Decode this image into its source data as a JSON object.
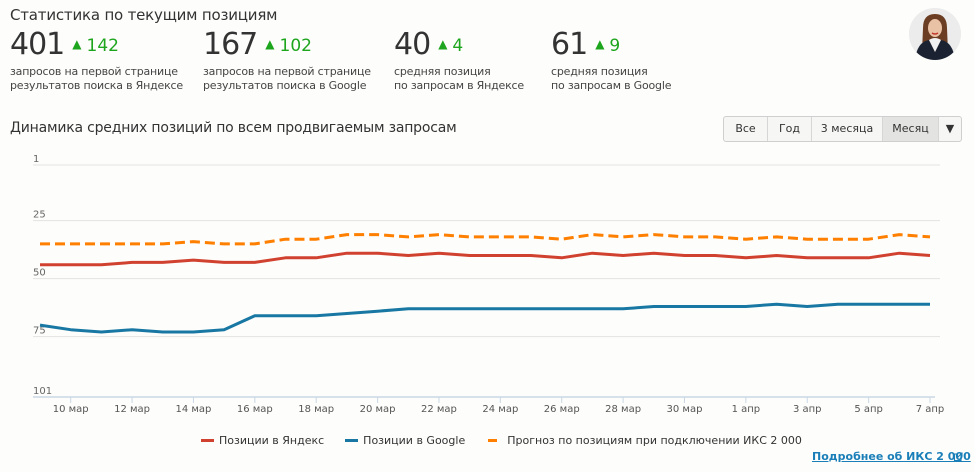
{
  "header": {
    "title": "Статистика по текущим позициям"
  },
  "stats": [
    {
      "value": "401",
      "arrow": "▲",
      "delta": "142",
      "desc": "запросов на первой странице\nрезультатов поиска в Яндексе"
    },
    {
      "value": "167",
      "arrow": "▲",
      "delta": "102",
      "desc": "запросов на первой странице\nрезультатов поиска в Google"
    },
    {
      "value": "40",
      "arrow": "▲",
      "delta": "4",
      "desc": "средняя позиция\nпо запросам в Яндексе"
    },
    {
      "value": "61",
      "arrow": "▲",
      "delta": "9",
      "desc": "средняя позиция\nпо запросам в Google"
    }
  ],
  "avatar": {
    "icon": "user-avatar-photo"
  },
  "range_buttons": [
    {
      "label": "Все",
      "active": false
    },
    {
      "label": "Год",
      "active": false
    },
    {
      "label": "3 месяца",
      "active": false
    },
    {
      "label": "Месяц",
      "active": true
    },
    {
      "label": "▼",
      "active": false
    }
  ],
  "more_link": {
    "label": "Подробнее об ИКС 2 000",
    "icon": "external-link-icon"
  },
  "colors": {
    "yandex": "#d1412f",
    "google": "#1878a3",
    "forecast": "#ff7f00",
    "positive": "#1ea51e",
    "link": "#1a7fb8"
  },
  "chart_data": {
    "type": "line",
    "title": "Динамика средних позиций по всем продвигаемым запросам",
    "y_inverted": true,
    "ylim": [
      1,
      101
    ],
    "yticks": [
      1,
      25,
      50,
      75,
      101
    ],
    "grid": true,
    "legend_position": "bottom",
    "x": [
      "9 мар",
      "10 мар",
      "11 мар",
      "12 мар",
      "13 мар",
      "14 мар",
      "15 мар",
      "16 мар",
      "17 мар",
      "18 мар",
      "19 мар",
      "20 мар",
      "21 мар",
      "22 мар",
      "23 мар",
      "24 мар",
      "25 мар",
      "26 мар",
      "27 мар",
      "28 мар",
      "29 мар",
      "30 мар",
      "31 мар",
      "1 апр",
      "2 апр",
      "3 апр",
      "4 апр",
      "5 апр",
      "6 апр",
      "7 апр"
    ],
    "xtick_labels": [
      "10 мар",
      "12 мар",
      "14 мар",
      "16 мар",
      "18 мар",
      "20 мар",
      "22 мар",
      "24 мар",
      "26 мар",
      "28 мар",
      "30 мар",
      "1 апр",
      "3 апр",
      "5 апр",
      "7 апр"
    ],
    "series": [
      {
        "name": "Позиции в Яндекс",
        "style": "solid",
        "values": [
          44,
          44,
          44,
          43,
          43,
          42,
          43,
          43,
          41,
          41,
          39,
          39,
          40,
          39,
          40,
          40,
          40,
          41,
          39,
          40,
          39,
          40,
          40,
          41,
          40,
          41,
          41,
          41,
          39,
          40
        ]
      },
      {
        "name": "Позиции в Google",
        "style": "solid",
        "values": [
          70,
          72,
          73,
          72,
          73,
          73,
          72,
          66,
          66,
          66,
          65,
          64,
          63,
          63,
          63,
          63,
          63,
          63,
          63,
          63,
          62,
          62,
          62,
          62,
          61,
          62,
          61,
          61,
          61,
          61
        ]
      },
      {
        "name": "Прогноз по позициям при подключении ИКС 2 000",
        "style": "dashed",
        "values": [
          35,
          35,
          35,
          35,
          35,
          34,
          35,
          35,
          33,
          33,
          31,
          31,
          32,
          31,
          32,
          32,
          32,
          33,
          31,
          32,
          31,
          32,
          32,
          33,
          32,
          33,
          33,
          33,
          31,
          32
        ]
      }
    ]
  }
}
